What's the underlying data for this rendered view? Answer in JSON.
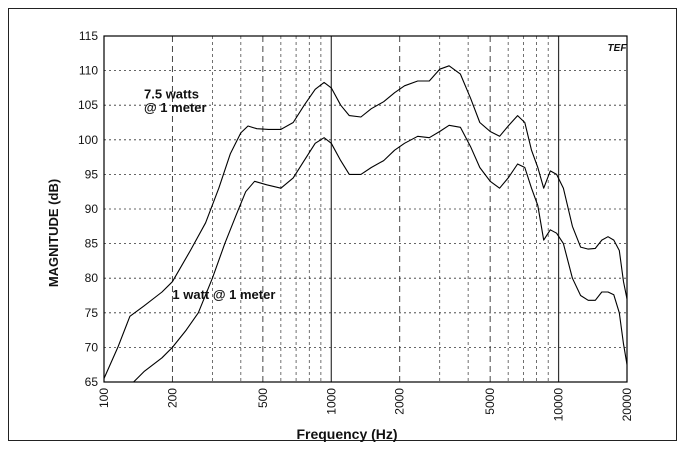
{
  "chart_data": {
    "type": "line",
    "xlabel": "Frequency (Hz)",
    "ylabel": "MAGNITUDE (dB)",
    "x_scale": "log",
    "xlim": [
      100,
      20000
    ],
    "ylim": [
      65,
      115
    ],
    "x_ticks": [
      100,
      200,
      500,
      1000,
      2000,
      5000,
      10000,
      20000
    ],
    "x_tick_labels": [
      "100",
      "200",
      "500",
      "1000",
      "2000",
      "5000",
      "10000",
      "20000"
    ],
    "y_ticks": [
      65,
      70,
      75,
      80,
      85,
      90,
      95,
      100,
      105,
      110,
      115
    ],
    "y_tick_labels": [
      "65",
      "70",
      "75",
      "80",
      "85",
      "90",
      "95",
      "100",
      "105",
      "110",
      "115"
    ],
    "grid": true,
    "logo": "TEF",
    "annotations": [
      {
        "text": "7.5 watts",
        "x": 150,
        "y": 106
      },
      {
        "text": "@ 1 meter",
        "x": 150,
        "y": 104
      },
      {
        "text": "1 watt @ 1 meter",
        "x": 200,
        "y": 77
      }
    ],
    "series": [
      {
        "name": "",
        "points": [
          [
            100,
            65.5
          ],
          [
            115,
            70
          ],
          [
            130,
            74.5
          ],
          [
            150,
            76
          ],
          [
            180,
            78
          ],
          [
            200,
            79.5
          ],
          [
            240,
            84
          ],
          [
            280,
            88
          ],
          [
            320,
            93
          ],
          [
            360,
            98
          ],
          [
            400,
            101
          ],
          [
            430,
            102
          ],
          [
            470,
            101.6
          ],
          [
            530,
            101.5
          ],
          [
            600,
            101.5
          ],
          [
            680,
            102.5
          ],
          [
            760,
            105
          ],
          [
            850,
            107.3
          ],
          [
            930,
            108.3
          ],
          [
            1000,
            107.5
          ],
          [
            1100,
            105
          ],
          [
            1200,
            103.5
          ],
          [
            1350,
            103.3
          ],
          [
            1500,
            104.5
          ],
          [
            1700,
            105.5
          ],
          [
            1900,
            106.8
          ],
          [
            2100,
            107.8
          ],
          [
            2400,
            108.5
          ],
          [
            2700,
            108.5
          ],
          [
            3000,
            110.2
          ],
          [
            3300,
            110.7
          ],
          [
            3700,
            109.5
          ],
          [
            4100,
            106
          ],
          [
            4500,
            102.5
          ],
          [
            5000,
            101.2
          ],
          [
            5500,
            100.5
          ],
          [
            6000,
            102
          ],
          [
            6600,
            103.5
          ],
          [
            7100,
            102.5
          ],
          [
            7600,
            98.5
          ],
          [
            8100,
            96
          ],
          [
            8600,
            93
          ],
          [
            9200,
            95.5
          ],
          [
            9800,
            95
          ],
          [
            10500,
            93
          ],
          [
            11500,
            87.5
          ],
          [
            12500,
            84.5
          ],
          [
            13500,
            84.2
          ],
          [
            14500,
            84.3
          ],
          [
            15500,
            85.5
          ],
          [
            16500,
            86
          ],
          [
            17500,
            85.5
          ],
          [
            18500,
            84
          ],
          [
            19300,
            79.5
          ],
          [
            20000,
            77
          ]
        ]
      },
      {
        "name": "",
        "points": [
          [
            135,
            65
          ],
          [
            150,
            66.5
          ],
          [
            180,
            68.5
          ],
          [
            200,
            70
          ],
          [
            230,
            72.5
          ],
          [
            260,
            75
          ],
          [
            300,
            80
          ],
          [
            340,
            85
          ],
          [
            380,
            89
          ],
          [
            420,
            92.5
          ],
          [
            460,
            94
          ],
          [
            520,
            93.5
          ],
          [
            600,
            93
          ],
          [
            680,
            94.5
          ],
          [
            760,
            97
          ],
          [
            850,
            99.5
          ],
          [
            930,
            100.3
          ],
          [
            1000,
            99.5
          ],
          [
            1100,
            97
          ],
          [
            1200,
            95
          ],
          [
            1350,
            95
          ],
          [
            1500,
            96
          ],
          [
            1700,
            97
          ],
          [
            1900,
            98.5
          ],
          [
            2100,
            99.5
          ],
          [
            2400,
            100.5
          ],
          [
            2700,
            100.3
          ],
          [
            3000,
            101.2
          ],
          [
            3300,
            102.1
          ],
          [
            3700,
            101.8
          ],
          [
            4100,
            99
          ],
          [
            4500,
            96
          ],
          [
            5000,
            94
          ],
          [
            5500,
            93
          ],
          [
            6000,
            94.5
          ],
          [
            6600,
            96.5
          ],
          [
            7100,
            96
          ],
          [
            7600,
            93
          ],
          [
            8100,
            90.5
          ],
          [
            8600,
            85.5
          ],
          [
            9200,
            87
          ],
          [
            9800,
            86.5
          ],
          [
            10500,
            85
          ],
          [
            11500,
            80
          ],
          [
            12500,
            77.5
          ],
          [
            13500,
            76.8
          ],
          [
            14500,
            76.8
          ],
          [
            15500,
            78
          ],
          [
            16500,
            78
          ],
          [
            17500,
            77.6
          ],
          [
            18500,
            75
          ],
          [
            19300,
            70.5
          ],
          [
            20000,
            67.5
          ]
        ]
      }
    ]
  }
}
